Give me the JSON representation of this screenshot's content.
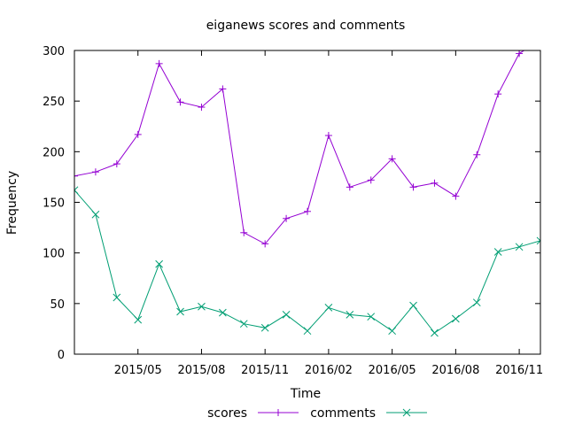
{
  "chart_data": {
    "type": "line",
    "title": "eiganews scores and comments",
    "xlabel": "Time",
    "ylabel": "Frequency",
    "ylim": [
      0,
      300
    ],
    "yticks": [
      "0",
      "50",
      "100",
      "150",
      "200",
      "250",
      "300"
    ],
    "xlim": [
      "2015-02",
      "2016-12"
    ],
    "xticks": [
      "2015/05",
      "2015/08",
      "2015/11",
      "2016/02",
      "2016/05",
      "2016/08",
      "2016/11"
    ],
    "x": [
      "2015-02",
      "2015-03",
      "2015-04",
      "2015-05",
      "2015-06",
      "2015-07",
      "2015-08",
      "2015-09",
      "2015-10",
      "2015-11",
      "2015-12",
      "2016-01",
      "2016-02",
      "2016-03",
      "2016-04",
      "2016-05",
      "2016-06",
      "2016-07",
      "2016-08",
      "2016-09",
      "2016-10",
      "2016-11",
      "2016-12"
    ],
    "series": [
      {
        "name": "scores",
        "color": "#9400d3",
        "marker": "plus",
        "values": [
          176,
          180,
          188,
          217,
          287,
          249,
          244,
          262,
          120,
          109,
          134,
          141,
          216,
          165,
          172,
          193,
          165,
          169,
          156,
          197,
          257,
          297,
          310
        ]
      },
      {
        "name": "comments",
        "color": "#009e73",
        "marker": "cross",
        "values": [
          162,
          138,
          56,
          34,
          89,
          42,
          47,
          41,
          30,
          26,
          39,
          23,
          46,
          39,
          37,
          23,
          48,
          21,
          35,
          51,
          101,
          106,
          112
        ]
      }
    ],
    "legend_position": "bottom-center",
    "grid": false
  }
}
